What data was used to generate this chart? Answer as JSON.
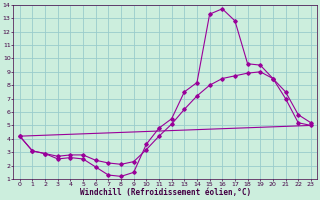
{
  "xlabel": "Windchill (Refroidissement éolien,°C)",
  "bg_color": "#cceedd",
  "grid_color": "#99cccc",
  "line_color": "#990099",
  "spine_color": "#440044",
  "xlim": [
    -0.5,
    23.5
  ],
  "ylim": [
    1,
    14
  ],
  "xticks": [
    0,
    1,
    2,
    3,
    4,
    5,
    6,
    7,
    8,
    9,
    10,
    11,
    12,
    13,
    14,
    15,
    16,
    17,
    18,
    19,
    20,
    21,
    22,
    23
  ],
  "yticks": [
    1,
    2,
    3,
    4,
    5,
    6,
    7,
    8,
    9,
    10,
    11,
    12,
    13,
    14
  ],
  "line1_x": [
    0,
    1,
    2,
    3,
    4,
    5,
    6,
    7,
    8,
    9,
    10,
    11,
    12,
    13,
    14,
    15,
    16,
    17,
    18,
    19,
    20,
    21,
    22,
    23
  ],
  "line1_y": [
    4.2,
    3.1,
    2.9,
    2.5,
    2.6,
    2.5,
    1.9,
    1.3,
    1.2,
    1.5,
    3.6,
    4.8,
    5.5,
    7.5,
    8.2,
    13.3,
    13.7,
    12.8,
    9.6,
    9.5,
    8.5,
    7.0,
    5.2,
    5.0
  ],
  "line2_x": [
    0,
    1,
    2,
    3,
    4,
    5,
    6,
    7,
    8,
    9,
    10,
    11,
    12,
    13,
    14,
    15,
    16,
    17,
    18,
    19,
    20,
    21,
    22,
    23
  ],
  "line2_y": [
    4.2,
    3.1,
    2.9,
    2.7,
    2.8,
    2.8,
    2.4,
    2.2,
    2.1,
    2.3,
    3.2,
    4.2,
    5.1,
    6.2,
    7.2,
    8.0,
    8.5,
    8.7,
    8.9,
    9.0,
    8.5,
    7.5,
    5.8,
    5.2
  ],
  "line3_x": [
    0,
    23
  ],
  "line3_y": [
    4.2,
    5.0
  ],
  "marker": "D",
  "markersize": 1.8,
  "linewidth": 0.8,
  "tick_fontsize": 4.5,
  "xlabel_fontsize": 5.5
}
